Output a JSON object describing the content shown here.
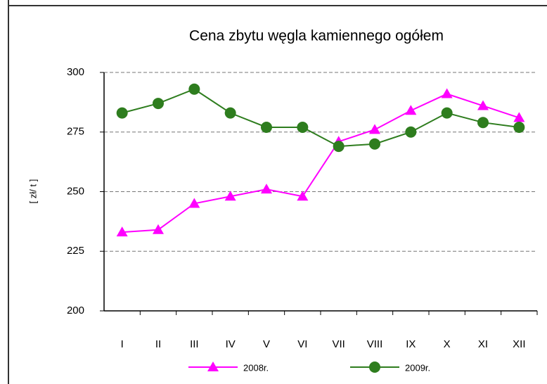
{
  "chart_data": {
    "type": "line",
    "title": "Cena zbytu węgla kamiennego ogółem",
    "y_label": "[ zł/ t ]",
    "categories": [
      "I",
      "II",
      "III",
      "IV",
      "V",
      "VI",
      "VII",
      "VIII",
      "IX",
      "X",
      "XI",
      "XII"
    ],
    "series": [
      {
        "name": "2008r.",
        "color": "#ff00ff",
        "marker": "triangle",
        "values": [
          233,
          234,
          245,
          248,
          251,
          248,
          271,
          276,
          284,
          291,
          286,
          281
        ]
      },
      {
        "name": "2009r.",
        "color": "#2e7d1e",
        "marker": "circle",
        "values": [
          283,
          287,
          293,
          283,
          277,
          277,
          269,
          270,
          275,
          283,
          279,
          277
        ]
      }
    ],
    "ylim": [
      200,
      300
    ],
    "yticks": [
      200,
      225,
      250,
      275,
      300
    ],
    "grid": true
  }
}
